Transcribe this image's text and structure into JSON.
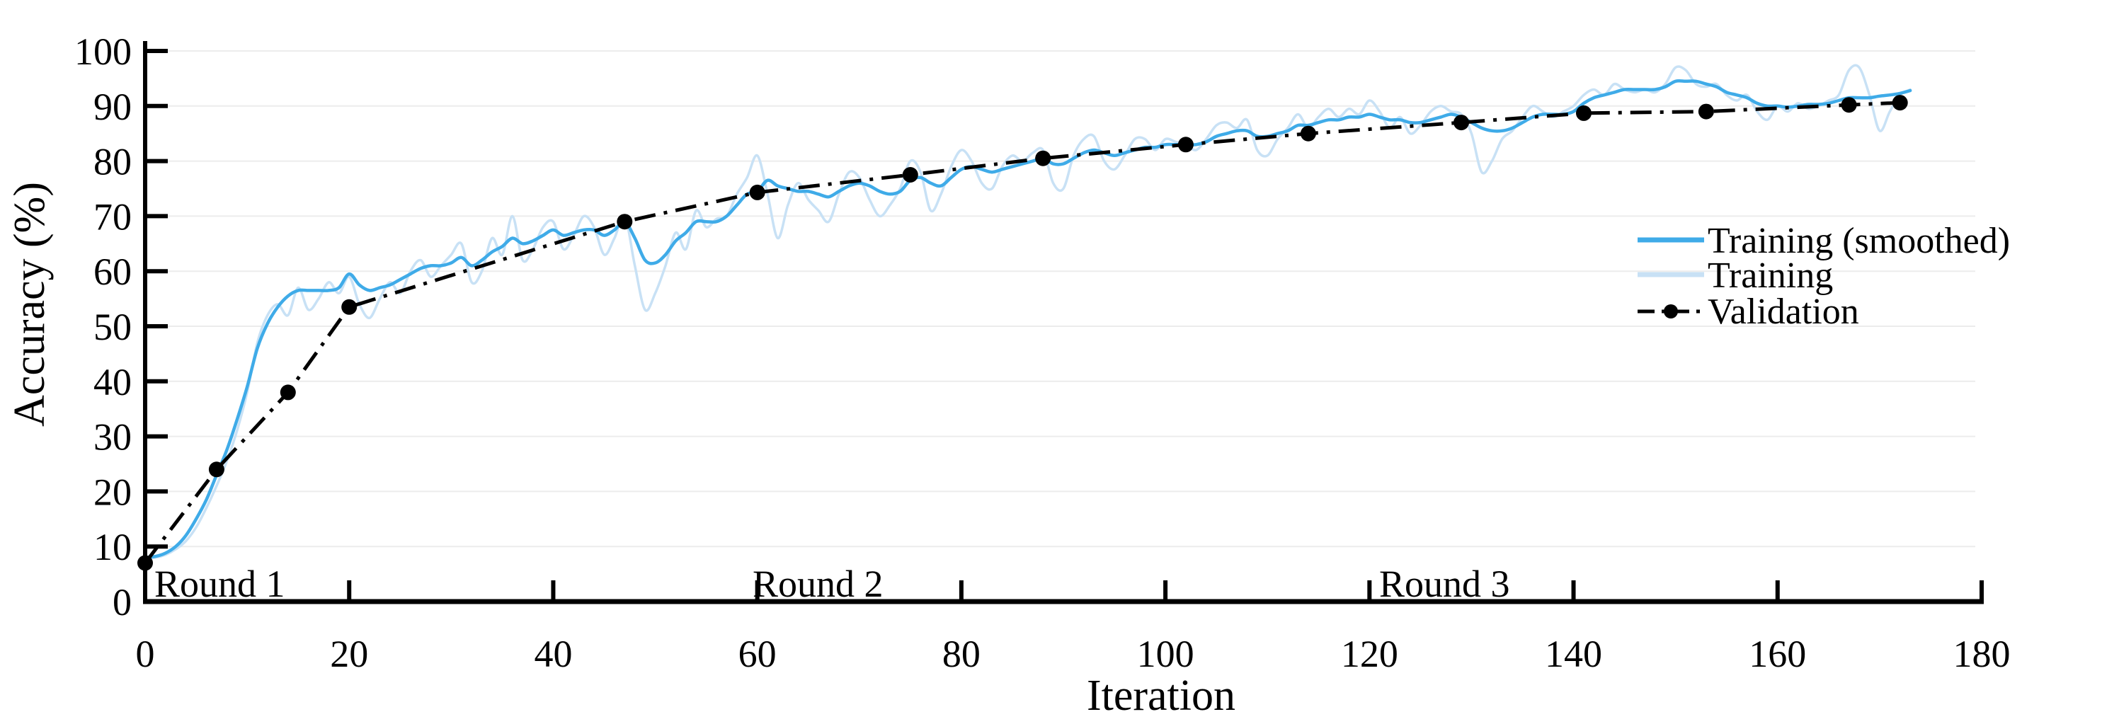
{
  "figure": {
    "xlabel": "Iteration",
    "ylabel": "Accuracy (%)",
    "round_labels": [
      {
        "text": "Round 1",
        "x_iter": 1
      },
      {
        "text": "Round 2",
        "x_iter": 60
      },
      {
        "text": "Round 3",
        "x_iter": 121
      }
    ],
    "legend": {
      "position": "right-center",
      "items": [
        {
          "label": "Training (smoothed)",
          "color": "#3fabe8",
          "style": "solid"
        },
        {
          "label": "Training",
          "color": "#c8e1f5",
          "style": "solid"
        },
        {
          "label": "Validation",
          "color": "#000000",
          "style": "dash-dot-marker"
        }
      ]
    },
    "colors": {
      "training_smoothed": "#3fabe8",
      "training_raw": "#c8e1f5",
      "validation": "#000000",
      "gridline": "#ececec",
      "axis": "#000000"
    }
  },
  "chart_data": {
    "type": "line",
    "title": "",
    "xlabel": "Iteration",
    "ylabel": "Accuracy (%)",
    "xlim": [
      0,
      180
    ],
    "ylim": [
      0,
      100
    ],
    "x_ticks": [
      0,
      20,
      40,
      60,
      80,
      100,
      120,
      140,
      160,
      180
    ],
    "y_ticks": [
      0,
      10,
      20,
      30,
      40,
      50,
      60,
      70,
      80,
      90,
      100
    ],
    "grid": "horizontal-only",
    "legend_position": "right-center",
    "annotations": [
      "Round 1",
      "Round 2",
      "Round 3"
    ],
    "series": [
      {
        "name": "Training (smoothed)",
        "color": "#3fabe8",
        "line_width": 4.5,
        "x_start": 0,
        "x_step": 1,
        "y": [
          8,
          8.2,
          8.8,
          10,
          12,
          15,
          18.5,
          23,
          27.5,
          33,
          39,
          46,
          50.5,
          53.5,
          55.5,
          56.5,
          56.5,
          56.5,
          56.5,
          57,
          59.5,
          57.5,
          56.5,
          57,
          57.5,
          58.5,
          59.5,
          60.5,
          61,
          61,
          61.5,
          62.5,
          61,
          62,
          63.5,
          64.5,
          66,
          65,
          65.5,
          66.5,
          67.5,
          66.5,
          67,
          67.5,
          67.5,
          66.5,
          67.5,
          69,
          66,
          62,
          61.5,
          63,
          65.5,
          67,
          69,
          69,
          69,
          70,
          72,
          74,
          74.5,
          76.5,
          75.5,
          75,
          74.5,
          74.5,
          74,
          73.5,
          74.5,
          75.5,
          76,
          75.5,
          74.5,
          74,
          74.5,
          76.5,
          77,
          76,
          75.5,
          77,
          78.5,
          79,
          78.5,
          78,
          78.5,
          79,
          79.5,
          80,
          80.5,
          79.5,
          79.5,
          80.5,
          81.5,
          82,
          81.5,
          81,
          81.5,
          82,
          82.5,
          82.5,
          83,
          83,
          83,
          83,
          83.5,
          84.5,
          85,
          85.5,
          85.5,
          84.5,
          84.5,
          85,
          85.5,
          86.5,
          86.5,
          87,
          87.5,
          87.5,
          88,
          88,
          88.5,
          88,
          87.5,
          87.5,
          87,
          87,
          87.5,
          88,
          88.5,
          88,
          87,
          86,
          85.5,
          85.5,
          86,
          87,
          88,
          88.5,
          88.5,
          88.5,
          89,
          90.5,
          91.5,
          92,
          92.5,
          93,
          93,
          93,
          93,
          93.5,
          94.5,
          94.5,
          94.5,
          94,
          93.5,
          92.5,
          92,
          91.5,
          90.5,
          90,
          90,
          89.8,
          90,
          90.3,
          90.3,
          90.5,
          91,
          91.5,
          91.5,
          91.5,
          91.8,
          92,
          92.3,
          92.8
        ]
      },
      {
        "name": "Training",
        "color": "#c8e1f5",
        "line_width": 3.5,
        "x_start": 0,
        "x_step": 1,
        "y": [
          8,
          8,
          8.5,
          9.5,
          11,
          13.5,
          17,
          21,
          25.5,
          31,
          38,
          47,
          52,
          54,
          52,
          57,
          53,
          55,
          58,
          56,
          59,
          54,
          51.5,
          55,
          58,
          56,
          60,
          62,
          59,
          61,
          63,
          65,
          58,
          60,
          66,
          63,
          70,
          62,
          64,
          68,
          69,
          64,
          66.5,
          70,
          68,
          63,
          66,
          70,
          61,
          53,
          56,
          61,
          67,
          64,
          71,
          68,
          69.5,
          70,
          74,
          77,
          81,
          74,
          66,
          72,
          76,
          73,
          71,
          69,
          74,
          78,
          77,
          73,
          70,
          72,
          75,
          80,
          78,
          71,
          74,
          79,
          82,
          80,
          76,
          75,
          79,
          81,
          80,
          81.5,
          82,
          76,
          75,
          81,
          84,
          84.5,
          80,
          78.5,
          81,
          84,
          84,
          82,
          84,
          83.5,
          83,
          82,
          84,
          86.5,
          87,
          86,
          87.5,
          82,
          81,
          84,
          86,
          88.5,
          86,
          88,
          89.5,
          88,
          89.5,
          88.5,
          91,
          89,
          86,
          88,
          85,
          86.5,
          89,
          90,
          89,
          88.5,
          85,
          78,
          80,
          84,
          85.5,
          88,
          90,
          89,
          88,
          89,
          90,
          92,
          93,
          92,
          94,
          93,
          92.5,
          93,
          92.5,
          94,
          97,
          96.5,
          94,
          93.5,
          94,
          92,
          91,
          92,
          89,
          87.5,
          90,
          89,
          90.5,
          89.5,
          90,
          91,
          92,
          96.5,
          97,
          92,
          85.5,
          89,
          92,
          93
        ]
      },
      {
        "name": "Validation",
        "color": "#000000",
        "line_width": 5,
        "style": "dash-dot",
        "marker": "filled-circle",
        "points": [
          [
            0,
            7
          ],
          [
            7,
            24
          ],
          [
            14,
            38
          ],
          [
            20,
            53.5
          ],
          [
            47,
            69
          ],
          [
            60,
            74.3
          ],
          [
            75,
            77.5
          ],
          [
            88,
            80.5
          ],
          [
            102,
            83
          ],
          [
            114,
            85
          ],
          [
            129,
            87
          ],
          [
            141,
            88.7
          ],
          [
            153,
            89
          ],
          [
            167,
            90.2
          ],
          [
            172,
            90.6
          ]
        ]
      }
    ]
  }
}
